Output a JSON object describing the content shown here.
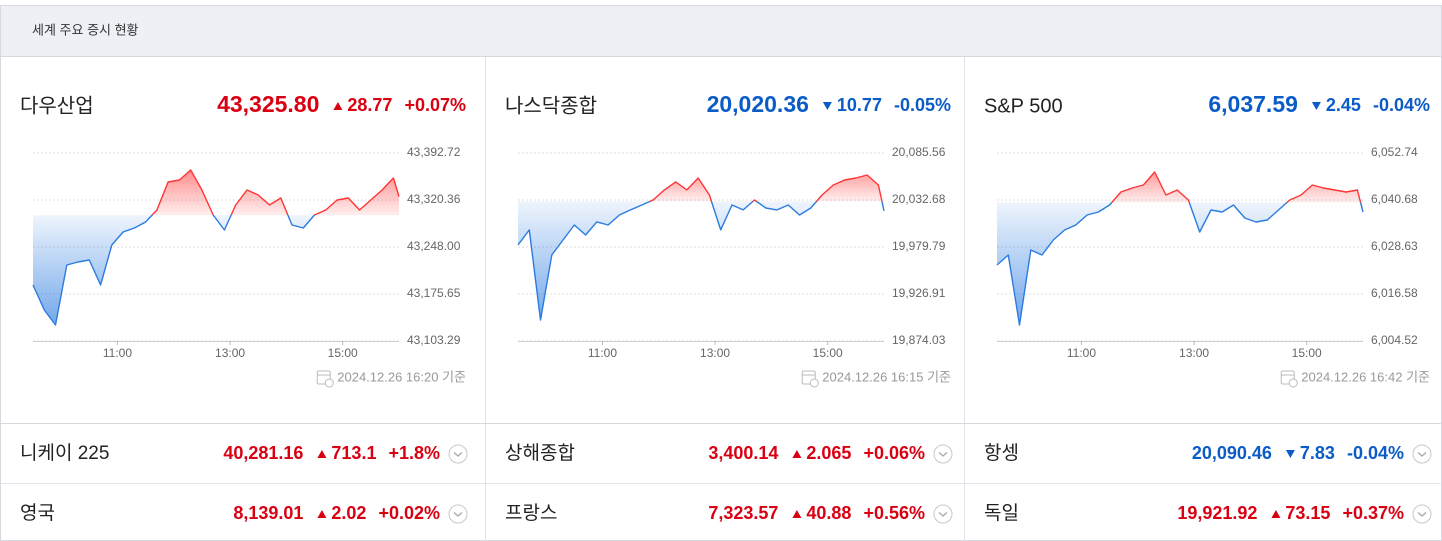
{
  "header": {
    "title": "세계 주요 증시 현황"
  },
  "panels": [
    {
      "name": "다우산업",
      "price": "43,325.80",
      "change": "28.77",
      "change_pct": "+0.07%",
      "direction": "up",
      "timestamp": "2024.12.26 16:20 기준",
      "chart": {
        "type": "line",
        "x": [
          9.5,
          9.7,
          9.9,
          10.1,
          10.3,
          10.5,
          10.7,
          10.9,
          11.1,
          11.3,
          11.5,
          11.7,
          11.9,
          12.1,
          12.3,
          12.5,
          12.7,
          12.9,
          13.1,
          13.3,
          13.5,
          13.7,
          13.9,
          14.1,
          14.3,
          14.5,
          14.7,
          14.9,
          15.1,
          15.3,
          15.5,
          15.7,
          15.9,
          16.0
        ],
        "values": [
          43189.5,
          43151.0,
          43127.9,
          43220.3,
          43224.9,
          43228.0,
          43189.5,
          43251.1,
          43271.1,
          43277.2,
          43286.5,
          43304.9,
          43348.1,
          43351.1,
          43366.5,
          43335.7,
          43297.3,
          43274.2,
          43312.6,
          43335.7,
          43328.0,
          43312.6,
          43323.4,
          43281.9,
          43277.2,
          43297.3,
          43304.9,
          43320.3,
          43323.4,
          43304.9,
          43320.3,
          43335.7,
          43354.2,
          43325.8
        ],
        "baseline": 43297.0,
        "xlim": [
          9.5,
          16
        ],
        "xticks": [
          {
            "value": 11,
            "label": "11:00"
          },
          {
            "value": 13,
            "label": "13:00"
          },
          {
            "value": 15,
            "label": "15:00"
          }
        ],
        "ylim": [
          43103.29,
          43392.72
        ],
        "yticks": [
          {
            "value": 43103.29,
            "label": "43,103.29"
          },
          {
            "value": 43175.65,
            "label": "43,175.65"
          },
          {
            "value": 43248.0,
            "label": "43,248.00"
          },
          {
            "value": 43320.36,
            "label": "43,320.36"
          },
          {
            "value": 43392.72,
            "label": "43,392.72"
          }
        ],
        "colors": {
          "above": "#ff3434",
          "below": "#2b7be0"
        }
      }
    },
    {
      "name": "나스닥종합",
      "price": "20,020.36",
      "change": "10.77",
      "change_pct": "-0.05%",
      "direction": "down",
      "timestamp": "2024.12.26 16:15 기준",
      "chart": {
        "type": "line",
        "x": [
          9.5,
          9.7,
          9.9,
          10.1,
          10.3,
          10.5,
          10.7,
          10.9,
          11.1,
          11.3,
          11.5,
          11.7,
          11.9,
          12.1,
          12.3,
          12.5,
          12.7,
          12.9,
          13.1,
          13.3,
          13.5,
          13.7,
          13.9,
          14.1,
          14.3,
          14.5,
          14.7,
          14.9,
          15.1,
          15.3,
          15.5,
          15.7,
          15.9,
          16.0
        ],
        "values": [
          19982.1,
          19999.0,
          19897.7,
          19970.8,
          19987.7,
          20004.6,
          19993.3,
          20008.0,
          20004.6,
          20015.8,
          20021.5,
          20027.1,
          20032.7,
          20044.0,
          20053.0,
          20044.0,
          20057.4,
          20038.3,
          19999.0,
          20027.1,
          20021.5,
          20032.7,
          20023.7,
          20021.5,
          20027.1,
          20015.8,
          20023.7,
          20038.3,
          20049.6,
          20055.2,
          20057.4,
          20060.8,
          20049.6,
          20020.36
        ],
        "baseline": 20031.13,
        "xlim": [
          9.5,
          16
        ],
        "xticks": [
          {
            "value": 11,
            "label": "11:00"
          },
          {
            "value": 13,
            "label": "13:00"
          },
          {
            "value": 15,
            "label": "15:00"
          }
        ],
        "ylim": [
          19874.03,
          20085.56
        ],
        "yticks": [
          {
            "value": 19874.03,
            "label": "19,874.03"
          },
          {
            "value": 19926.91,
            "label": "19,926.91"
          },
          {
            "value": 19979.79,
            "label": "19,979.79"
          },
          {
            "value": 20032.68,
            "label": "20,032.68"
          },
          {
            "value": 20085.56,
            "label": "20,085.56"
          }
        ],
        "colors": {
          "above": "#ff3434",
          "below": "#2b7be0"
        }
      }
    },
    {
      "name": "S&P 500",
      "price": "6,037.59",
      "change": "2.45",
      "change_pct": "-0.04%",
      "direction": "down",
      "timestamp": "2024.12.26 16:42 기준",
      "chart": {
        "type": "line",
        "x": [
          9.5,
          9.7,
          9.9,
          10.1,
          10.3,
          10.5,
          10.7,
          10.9,
          11.1,
          11.3,
          11.5,
          11.7,
          11.9,
          12.1,
          12.3,
          12.5,
          12.7,
          12.9,
          13.1,
          13.3,
          13.5,
          13.7,
          13.9,
          14.1,
          14.3,
          14.5,
          14.7,
          14.9,
          15.1,
          15.3,
          15.5,
          15.7,
          15.9,
          16.0
        ],
        "values": [
          6024.01,
          6026.58,
          6008.62,
          6027.86,
          6026.58,
          6030.42,
          6032.99,
          6034.27,
          6036.84,
          6037.61,
          6039.4,
          6042.74,
          6043.76,
          6044.53,
          6047.87,
          6041.97,
          6043.25,
          6040.68,
          6032.48,
          6038.12,
          6037.61,
          6039.4,
          6036.07,
          6035.04,
          6035.55,
          6038.12,
          6040.68,
          6041.97,
          6044.53,
          6043.76,
          6043.25,
          6042.74,
          6043.25,
          6037.59
        ],
        "baseline": 6040.04,
        "xlim": [
          9.5,
          16
        ],
        "xticks": [
          {
            "value": 11,
            "label": "11:00"
          },
          {
            "value": 13,
            "label": "13:00"
          },
          {
            "value": 15,
            "label": "15:00"
          }
        ],
        "ylim": [
          6004.52,
          6052.74
        ],
        "yticks": [
          {
            "value": 6004.52,
            "label": "6,004.52"
          },
          {
            "value": 6016.58,
            "label": "6,016.58"
          },
          {
            "value": 6028.63,
            "label": "6,028.63"
          },
          {
            "value": 6040.68,
            "label": "6,040.68"
          },
          {
            "value": 6052.74,
            "label": "6,052.74"
          }
        ],
        "colors": {
          "above": "#ff3434",
          "below": "#2b7be0"
        }
      }
    }
  ],
  "rows": [
    [
      {
        "name": "니케이 225",
        "price": "40,281.16",
        "change": "713.1",
        "change_pct": "+1.8%",
        "direction": "up"
      },
      {
        "name": "상해종합",
        "price": "3,400.14",
        "change": "2.065",
        "change_pct": "+0.06%",
        "direction": "up"
      },
      {
        "name": "항셍",
        "price": "20,090.46",
        "change": "7.83",
        "change_pct": "-0.04%",
        "direction": "down"
      }
    ],
    [
      {
        "name": "영국",
        "price": "8,139.01",
        "change": "2.02",
        "change_pct": "+0.02%",
        "direction": "up"
      },
      {
        "name": "프랑스",
        "price": "7,323.57",
        "change": "40.88",
        "change_pct": "+0.56%",
        "direction": "up"
      },
      {
        "name": "독일",
        "price": "19,921.92",
        "change": "73.15",
        "change_pct": "+0.37%",
        "direction": "up"
      }
    ]
  ]
}
